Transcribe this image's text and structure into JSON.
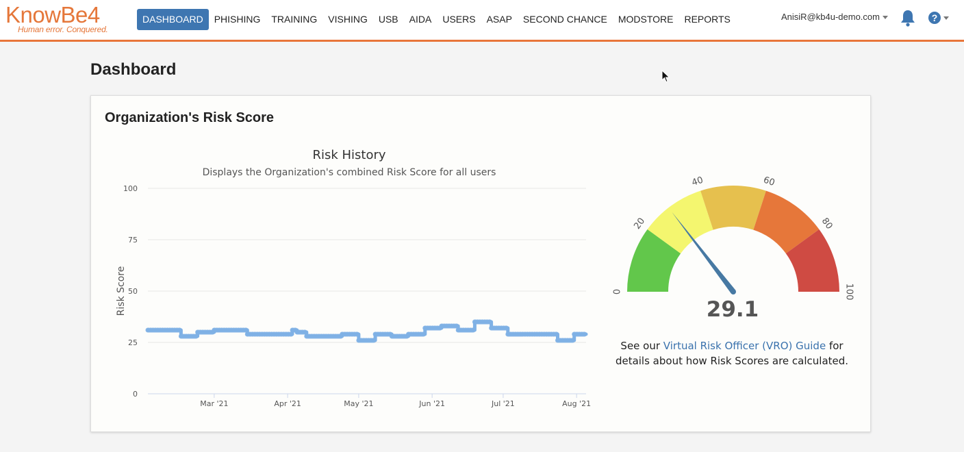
{
  "brand": {
    "name": "KnowBe4",
    "tagline": "Human error. Conquered."
  },
  "nav": {
    "items": [
      {
        "label": "DASHBOARD",
        "active": true
      },
      {
        "label": "PHISHING"
      },
      {
        "label": "TRAINING"
      },
      {
        "label": "VISHING"
      },
      {
        "label": "USB"
      },
      {
        "label": "AIDA"
      },
      {
        "label": "USERS"
      },
      {
        "label": "ASAP"
      },
      {
        "label": "SECOND CHANCE"
      },
      {
        "label": "MODSTORE"
      },
      {
        "label": "REPORTS"
      }
    ],
    "user_email": "AnisiR@kb4u-demo.com",
    "notification_icon": "bell-icon",
    "help_icon": "question-circle-icon"
  },
  "colors": {
    "accent_orange": "#e8763a",
    "nav_active": "#3e76b1",
    "line_series": "#7fb1e5",
    "link": "#3a72ad"
  },
  "page": {
    "title": "Dashboard"
  },
  "card": {
    "title": "Organization's Risk Score",
    "vro_prefix": "See our ",
    "vro_link": "Virtual Risk Officer (VRO) Guide",
    "vro_suffix": " for details about how Risk Scores are calculated."
  },
  "chart_data": [
    {
      "type": "line",
      "title": "Risk History",
      "subtitle": "Displays the Organization's combined Risk Score for all users",
      "ylabel": "Risk Score",
      "xlabel": "",
      "ylim": [
        0,
        100
      ],
      "yticks": [
        0,
        25,
        50,
        75,
        100
      ],
      "xlim": [
        "2021-02-01",
        "2021-08-05"
      ],
      "xticks": [
        {
          "date": "2021-03-01",
          "label": "Mar '21"
        },
        {
          "date": "2021-04-01",
          "label": "Apr '21"
        },
        {
          "date": "2021-05-01",
          "label": "May '21"
        },
        {
          "date": "2021-06-01",
          "label": "Jun '21"
        },
        {
          "date": "2021-07-01",
          "label": "Jul '21"
        },
        {
          "date": "2021-08-01",
          "label": "Aug '21"
        }
      ],
      "grid": true,
      "series": [
        {
          "steps": [
            {
              "from": "2021-02-01",
              "to": "2021-02-15",
              "value": 31
            },
            {
              "from": "2021-02-15",
              "to": "2021-02-22",
              "value": 28
            },
            {
              "from": "2021-02-22",
              "to": "2021-03-01",
              "value": 30
            },
            {
              "from": "2021-03-01",
              "to": "2021-03-15",
              "value": 31
            },
            {
              "from": "2021-03-15",
              "to": "2021-04-03",
              "value": 29
            },
            {
              "from": "2021-04-03",
              "to": "2021-04-05",
              "value": 31
            },
            {
              "from": "2021-04-05",
              "to": "2021-04-09",
              "value": 30
            },
            {
              "from": "2021-04-09",
              "to": "2021-04-24",
              "value": 28
            },
            {
              "from": "2021-04-24",
              "to": "2021-05-01",
              "value": 29
            },
            {
              "from": "2021-05-01",
              "to": "2021-05-08",
              "value": 26
            },
            {
              "from": "2021-05-08",
              "to": "2021-05-15",
              "value": 29
            },
            {
              "from": "2021-05-15",
              "to": "2021-05-22",
              "value": 28
            },
            {
              "from": "2021-05-22",
              "to": "2021-05-29",
              "value": 29
            },
            {
              "from": "2021-05-29",
              "to": "2021-06-05",
              "value": 32
            },
            {
              "from": "2021-06-05",
              "to": "2021-06-12",
              "value": 33
            },
            {
              "from": "2021-06-12",
              "to": "2021-06-19",
              "value": 31
            },
            {
              "from": "2021-06-19",
              "to": "2021-06-26",
              "value": 35
            },
            {
              "from": "2021-06-26",
              "to": "2021-07-03",
              "value": 32
            },
            {
              "from": "2021-07-03",
              "to": "2021-07-24",
              "value": 29
            },
            {
              "from": "2021-07-24",
              "to": "2021-07-31",
              "value": 26
            },
            {
              "from": "2021-07-31",
              "to": "2021-08-05",
              "value": 29
            }
          ]
        }
      ]
    },
    {
      "type": "gauge",
      "range": [
        0,
        100
      ],
      "ticks": [
        0,
        20,
        40,
        60,
        80,
        100
      ],
      "value": 29.1,
      "value_label": "29.1",
      "bands": [
        {
          "from": 0,
          "to": 20,
          "color": "#62c74b"
        },
        {
          "from": 20,
          "to": 40,
          "color": "#f4f66f"
        },
        {
          "from": 40,
          "to": 60,
          "color": "#e6c04e"
        },
        {
          "from": 60,
          "to": 80,
          "color": "#e6773a"
        },
        {
          "from": 80,
          "to": 100,
          "color": "#cf4b43"
        }
      ],
      "needle_color": "#4779a3"
    }
  ]
}
